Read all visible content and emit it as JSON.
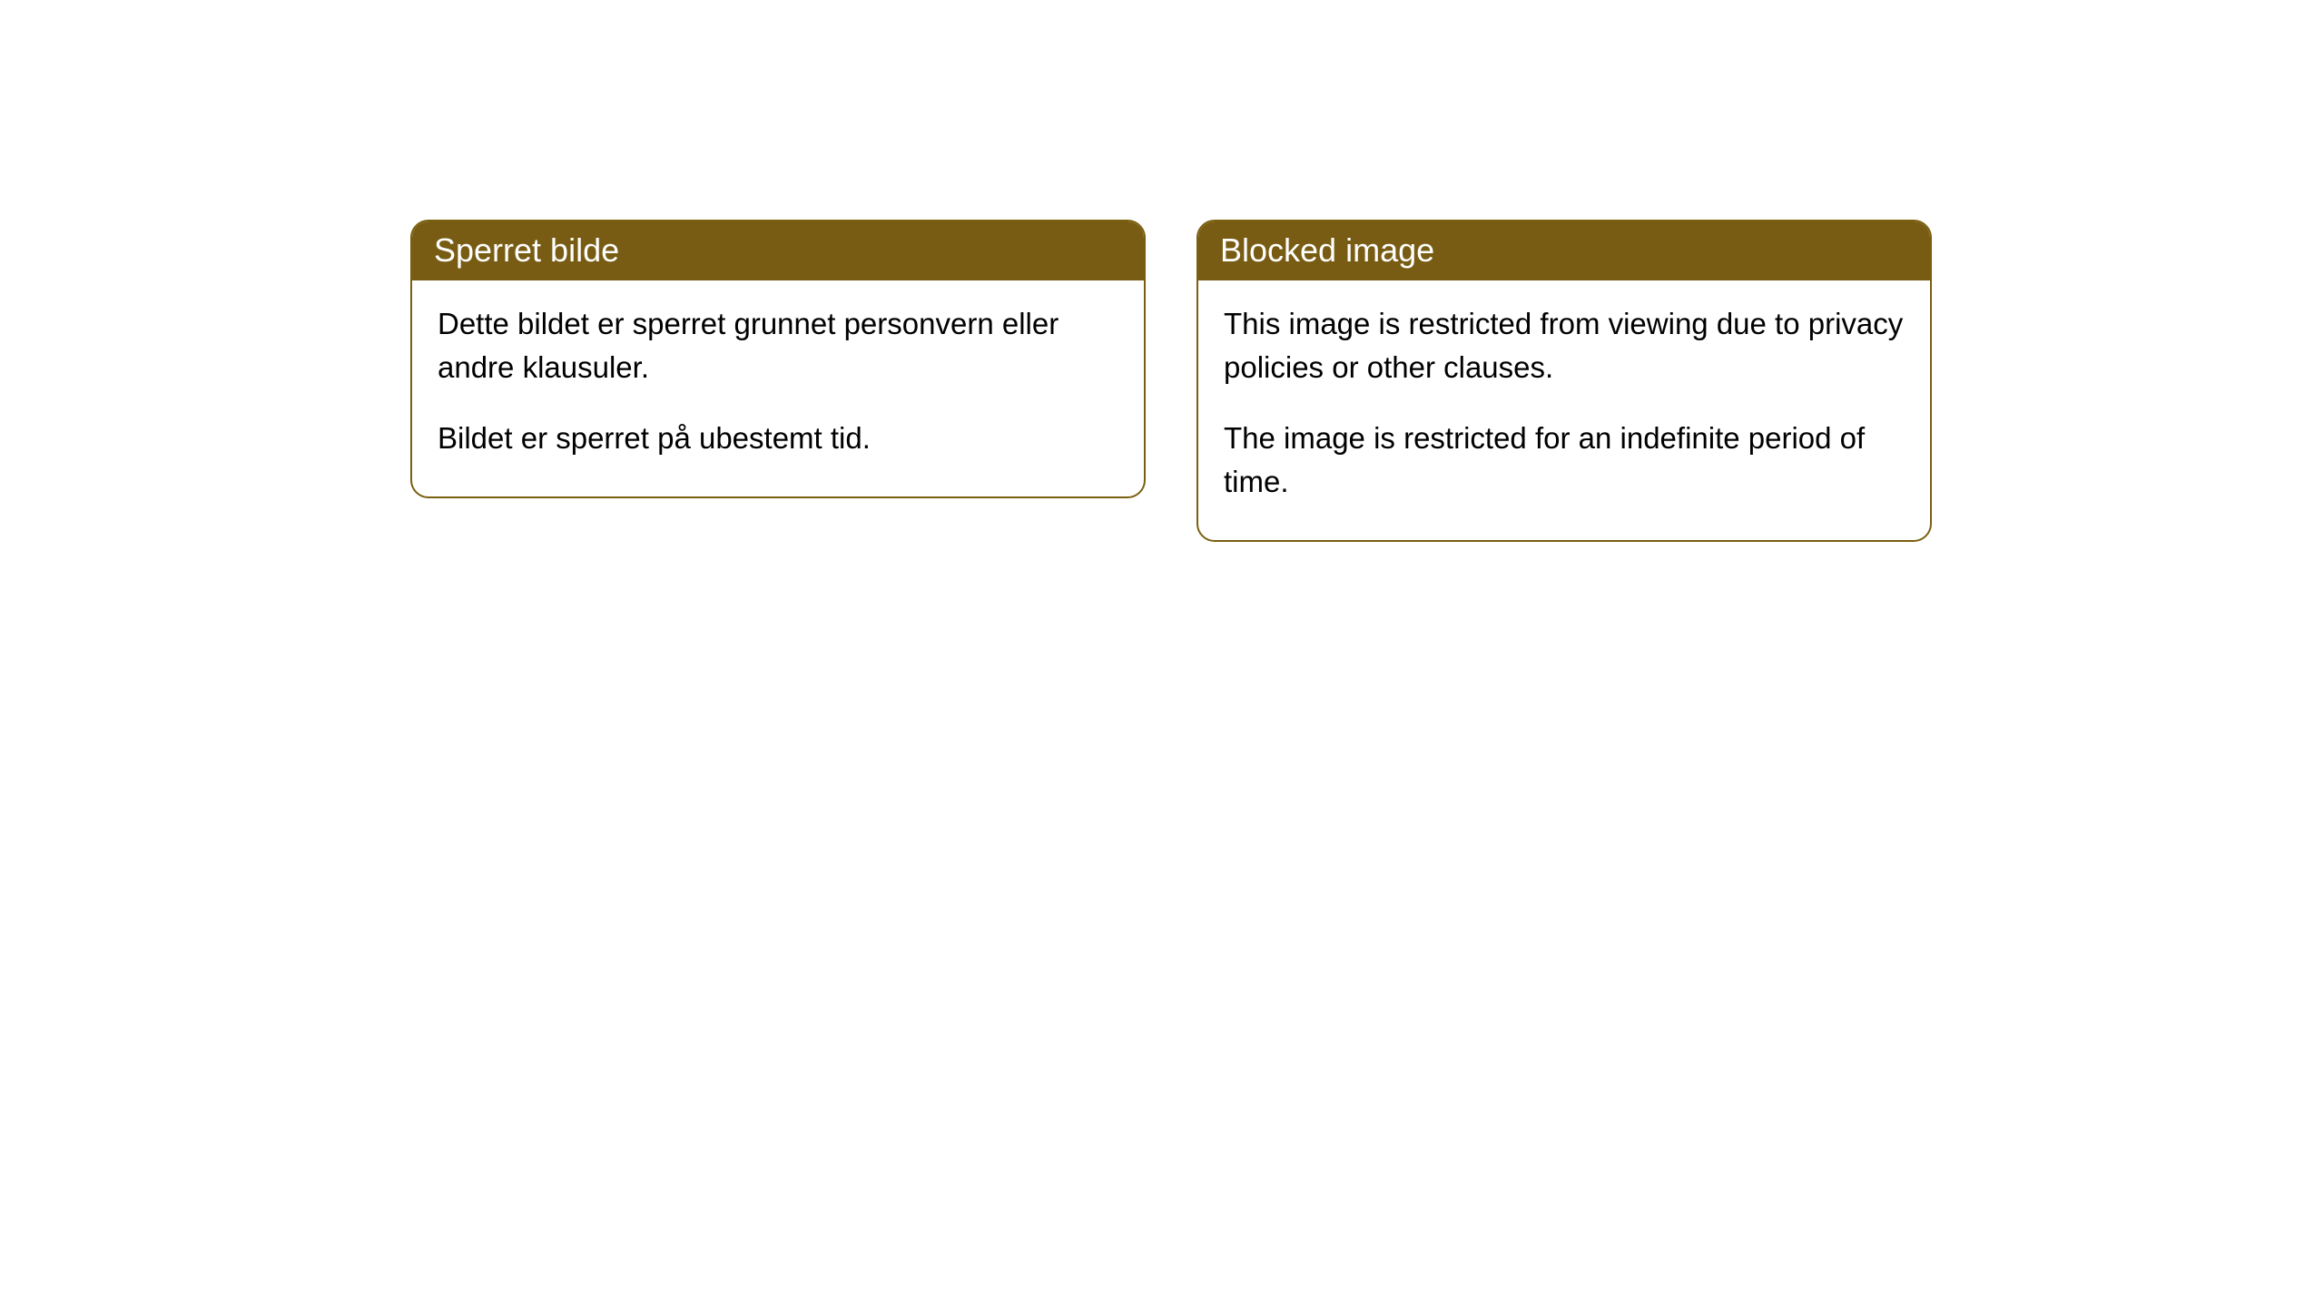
{
  "cards": [
    {
      "title": "Sperret bilde",
      "p1": "Dette bildet er sperret grunnet personvern eller andre klausuler.",
      "p2": "Bildet er sperret på ubestemt tid."
    },
    {
      "title": "Blocked image",
      "p1": "This image is restricted from viewing due to privacy policies or other clauses.",
      "p2": "The image is restricted for an indefinite period of time."
    }
  ],
  "colors": {
    "header_bg": "#785c13",
    "header_text": "#ffffff",
    "border": "#7a5f0e",
    "body_text": "#000000",
    "page_bg": "#ffffff"
  }
}
